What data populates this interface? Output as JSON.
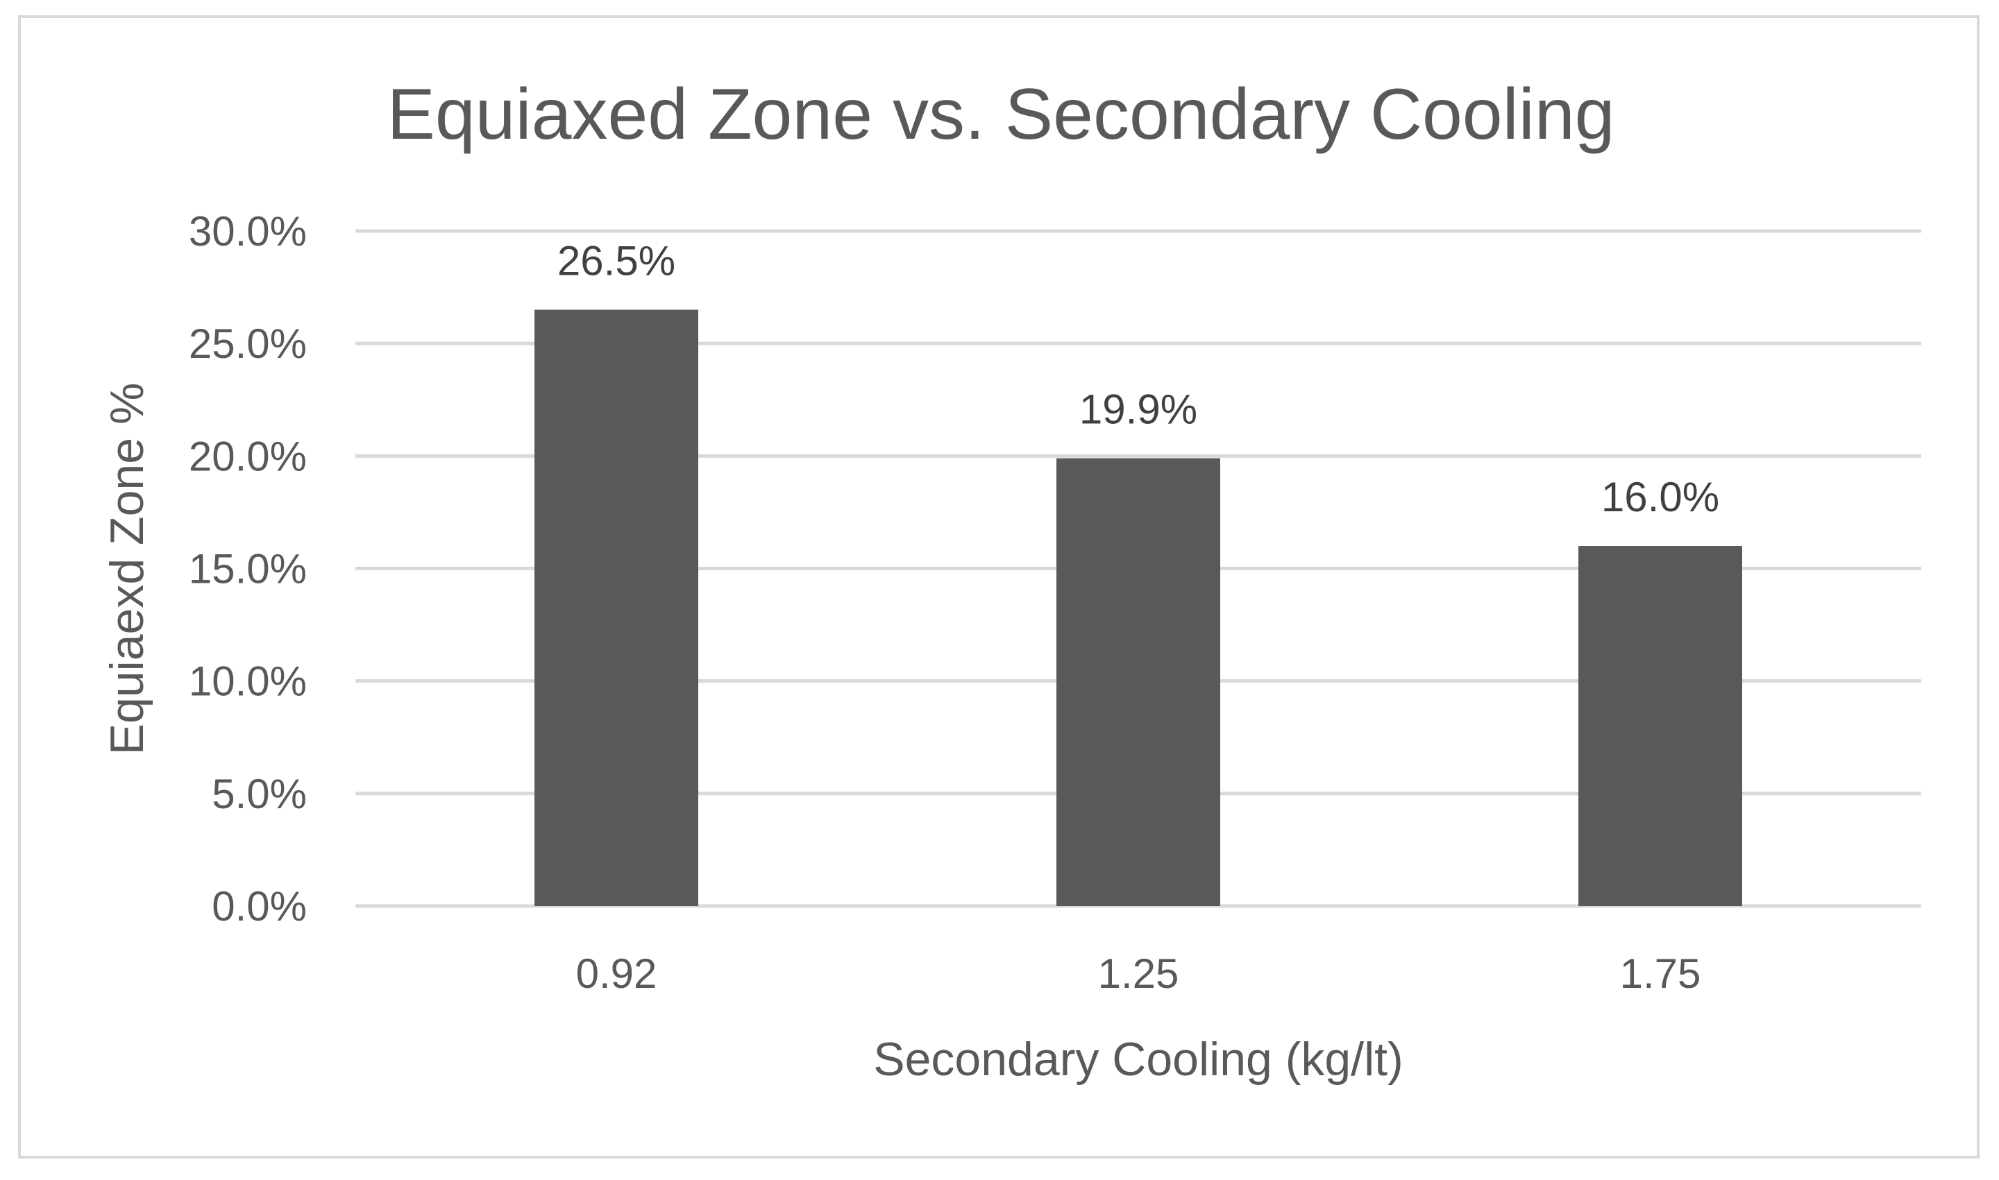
{
  "chart_data": {
    "type": "bar",
    "title": "Equiaxed Zone vs. Secondary Cooling",
    "xlabel": "Secondary Cooling (kg/lt)",
    "ylabel": "Equiaexd Zone %",
    "categories": [
      "0.92",
      "1.25",
      "1.75"
    ],
    "values": [
      26.5,
      19.9,
      16.0
    ],
    "data_labels": [
      "26.5%",
      "19.9%",
      "16.0%"
    ],
    "ylim": [
      0,
      30
    ],
    "yticks": [
      0,
      5,
      10,
      15,
      20,
      25,
      30
    ],
    "ytick_labels": [
      "0.0%",
      "5.0%",
      "10.0%",
      "15.0%",
      "20.0%",
      "25.0%",
      "30.0%"
    ],
    "grid": true,
    "legend": "none",
    "colors": {
      "bar": "#595959",
      "grid": "#d9d9d9",
      "text": "#595959",
      "label": "#404040",
      "border": "#d9d9d9"
    }
  }
}
